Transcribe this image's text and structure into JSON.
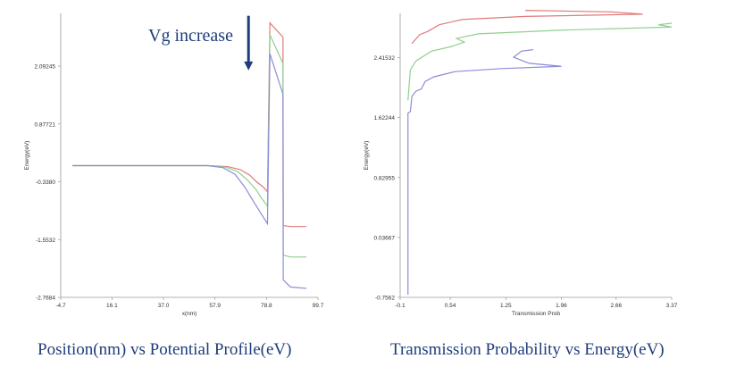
{
  "captions": {
    "left": "Position(nm) vs Potential Profile(eV)",
    "right": "Transmission Probability vs Energy(eV)"
  },
  "colors": {
    "series_red": "#e07a7a",
    "series_green": "#8fd08f",
    "series_blue": "#8c8cd8",
    "arrow": "#1f3d7a",
    "axis": "#9a9a9a"
  },
  "chart_data": [
    {
      "type": "line",
      "title": "",
      "xlabel": "x(nm)",
      "ylabel": "Energy(eV)",
      "xlim": [
        -4.7,
        99.7
      ],
      "ylim": [
        -2.7684,
        3.2
      ],
      "x_ticks": [
        "-4.7",
        "16.1",
        "37.0",
        "57.9",
        "78.8",
        "99.7"
      ],
      "x_tick_values": [
        -4.7,
        16.1,
        37.0,
        57.9,
        78.8,
        99.7
      ],
      "y_ticks": [
        "2.09245",
        "0.87721",
        "-0.3380",
        "-1.5532",
        "-2.7684"
      ],
      "y_tick_values": [
        2.09245,
        0.87721,
        -0.338,
        -1.5532,
        -2.7684
      ],
      "annotation": {
        "text": "Vg increase",
        "x": 71.5,
        "y_start": 3.15,
        "y_end": 2.0,
        "arrow": "down"
      },
      "series": [
        {
          "color": "red",
          "points": [
            [
              0,
              0
            ],
            [
              55,
              0
            ],
            [
              63,
              -0.02
            ],
            [
              68,
              -0.08
            ],
            [
              72,
              -0.2
            ],
            [
              75,
              -0.35
            ],
            [
              77.5,
              -0.45
            ],
            [
              79.2,
              -0.55
            ],
            [
              80.2,
              3.0
            ],
            [
              85.5,
              2.7
            ],
            [
              85.6,
              -1.26
            ],
            [
              88.5,
              -1.28
            ],
            [
              95,
              -1.28
            ]
          ]
        },
        {
          "color": "green",
          "points": [
            [
              0,
              0
            ],
            [
              55,
              0
            ],
            [
              62,
              -0.03
            ],
            [
              67,
              -0.12
            ],
            [
              71,
              -0.3
            ],
            [
              74.5,
              -0.5
            ],
            [
              77,
              -0.7
            ],
            [
              79.2,
              -0.85
            ],
            [
              80.2,
              2.75
            ],
            [
              85.5,
              2.15
            ],
            [
              85.6,
              -1.88
            ],
            [
              88.5,
              -1.92
            ],
            [
              95,
              -1.92
            ]
          ]
        },
        {
          "color": "blue",
          "points": [
            [
              0,
              0
            ],
            [
              55,
              0
            ],
            [
              61,
              -0.04
            ],
            [
              66,
              -0.18
            ],
            [
              70,
              -0.45
            ],
            [
              73.5,
              -0.75
            ],
            [
              76.5,
              -1.0
            ],
            [
              79.2,
              -1.22
            ],
            [
              80.2,
              2.35
            ],
            [
              85.5,
              1.5
            ],
            [
              85.6,
              -2.4
            ],
            [
              88.5,
              -2.55
            ],
            [
              95,
              -2.58
            ]
          ]
        }
      ]
    },
    {
      "type": "line",
      "title": "",
      "xlabel": "Transmission Prob",
      "ylabel": "Energy(eV)",
      "xlim": [
        -0.1,
        3.37
      ],
      "ylim": [
        -0.7562,
        3.0
      ],
      "x_ticks": [
        "-0.1",
        "0.54",
        "1.25",
        "1.96",
        "2.66",
        "3.37"
      ],
      "x_tick_values": [
        -0.1,
        0.54,
        1.25,
        1.96,
        2.66,
        3.37
      ],
      "y_ticks": [
        "2.41532",
        "1.62244",
        "0.82955",
        "0.03667",
        "-0.7562"
      ],
      "y_tick_values": [
        2.41532,
        1.62244,
        0.82955,
        0.03667,
        -0.7562
      ],
      "series": [
        {
          "color": "blue",
          "points": [
            [
              0,
              -0.72
            ],
            [
              0,
              1.68
            ],
            [
              0.03,
              1.7
            ],
            [
              0.05,
              1.9
            ],
            [
              0.1,
              1.97
            ],
            [
              0.17,
              2.0
            ],
            [
              0.22,
              2.1
            ],
            [
              0.33,
              2.16
            ],
            [
              0.6,
              2.23
            ],
            [
              1.2,
              2.27
            ],
            [
              1.96,
              2.3
            ],
            [
              1.55,
              2.34
            ],
            [
              1.35,
              2.42
            ],
            [
              1.45,
              2.5
            ],
            [
              1.6,
              2.52
            ]
          ]
        },
        {
          "color": "green",
          "points": [
            [
              0,
              1.85
            ],
            [
              0.03,
              2.25
            ],
            [
              0.1,
              2.37
            ],
            [
              0.3,
              2.5
            ],
            [
              0.55,
              2.56
            ],
            [
              0.72,
              2.62
            ],
            [
              0.62,
              2.67
            ],
            [
              0.9,
              2.73
            ],
            [
              2.0,
              2.78
            ],
            [
              3.37,
              2.82
            ],
            [
              3.2,
              2.85
            ],
            [
              3.37,
              2.87
            ]
          ]
        },
        {
          "color": "red",
          "points": [
            [
              0.05,
              2.6
            ],
            [
              0.15,
              2.72
            ],
            [
              0.25,
              2.76
            ],
            [
              0.4,
              2.85
            ],
            [
              0.7,
              2.92
            ],
            [
              1.5,
              2.96
            ],
            [
              3.0,
              2.99
            ],
            [
              2.6,
              3.02
            ],
            [
              1.5,
              3.04
            ]
          ]
        }
      ]
    }
  ]
}
